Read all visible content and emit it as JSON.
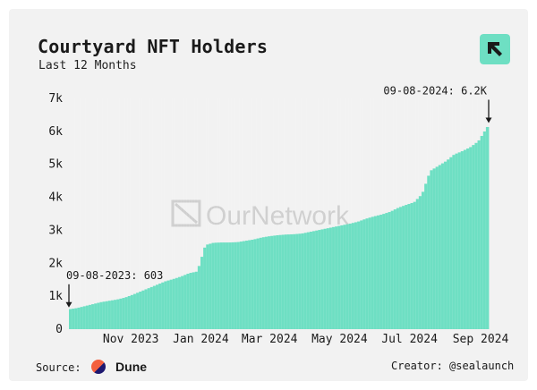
{
  "title": "Courtyard NFT Holders",
  "subtitle": "Last 12 Months",
  "watermark": "OurNetwork",
  "footer": {
    "source_label": "Source:",
    "source_name": "Dune",
    "creator_label": "Creator: ",
    "creator_name": "@sealaunch"
  },
  "colors": {
    "bar": "#6edfc3",
    "logo_bg": "#6edfc3",
    "logo_fg": "#1a1a1a"
  },
  "chart_data": {
    "type": "bar",
    "title": "Courtyard NFT Holders",
    "subtitle": "Last 12 Months",
    "ylim": [
      0,
      7000
    ],
    "yticks": [
      0,
      1000,
      2000,
      3000,
      4000,
      5000,
      6000,
      7000
    ],
    "ytick_labels": [
      "0",
      "1k",
      "2k",
      "3k",
      "4k",
      "5k",
      "6k",
      "7k"
    ],
    "x_start": "2023-09-08",
    "x_end": "2024-09-08",
    "xtick_labels": [
      "Nov 2023",
      "Jan 2024",
      "Mar 2024",
      "May 2024",
      "Jul 2024",
      "Sep 2024"
    ],
    "xtick_dates": [
      "2023-11-01",
      "2024-01-01",
      "2024-03-01",
      "2024-05-01",
      "2024-07-01",
      "2024-09-01"
    ],
    "grid": false,
    "series": [
      {
        "points": [
          [
            "2023-09-08",
            603
          ],
          [
            "2023-09-15",
            640
          ],
          [
            "2023-09-22",
            700
          ],
          [
            "2023-09-29",
            760
          ],
          [
            "2023-10-06",
            820
          ],
          [
            "2023-10-13",
            860
          ],
          [
            "2023-10-20",
            900
          ],
          [
            "2023-10-27",
            960
          ],
          [
            "2023-11-03",
            1050
          ],
          [
            "2023-11-10",
            1150
          ],
          [
            "2023-11-17",
            1250
          ],
          [
            "2023-11-24",
            1350
          ],
          [
            "2023-12-01",
            1450
          ],
          [
            "2023-12-08",
            1520
          ],
          [
            "2023-12-15",
            1600
          ],
          [
            "2023-12-22",
            1700
          ],
          [
            "2023-12-29",
            1750
          ],
          [
            "2024-01-05",
            2550
          ],
          [
            "2024-01-12",
            2620
          ],
          [
            "2024-01-19",
            2630
          ],
          [
            "2024-01-26",
            2630
          ],
          [
            "2024-02-02",
            2640
          ],
          [
            "2024-02-09",
            2680
          ],
          [
            "2024-02-16",
            2720
          ],
          [
            "2024-02-23",
            2780
          ],
          [
            "2024-03-01",
            2820
          ],
          [
            "2024-03-08",
            2850
          ],
          [
            "2024-03-15",
            2870
          ],
          [
            "2024-03-22",
            2880
          ],
          [
            "2024-03-29",
            2900
          ],
          [
            "2024-04-05",
            2950
          ],
          [
            "2024-04-12",
            3000
          ],
          [
            "2024-04-19",
            3050
          ],
          [
            "2024-04-26",
            3100
          ],
          [
            "2024-05-03",
            3150
          ],
          [
            "2024-05-10",
            3200
          ],
          [
            "2024-05-17",
            3260
          ],
          [
            "2024-05-24",
            3350
          ],
          [
            "2024-05-31",
            3420
          ],
          [
            "2024-06-07",
            3480
          ],
          [
            "2024-06-14",
            3560
          ],
          [
            "2024-06-21",
            3680
          ],
          [
            "2024-06-28",
            3770
          ],
          [
            "2024-07-05",
            3850
          ],
          [
            "2024-07-12",
            4100
          ],
          [
            "2024-07-19",
            4800
          ],
          [
            "2024-07-26",
            4950
          ],
          [
            "2024-08-02",
            5100
          ],
          [
            "2024-08-09",
            5300
          ],
          [
            "2024-08-16",
            5400
          ],
          [
            "2024-08-23",
            5520
          ],
          [
            "2024-08-30",
            5700
          ],
          [
            "2024-09-08",
            6200
          ]
        ]
      }
    ],
    "annotations": [
      {
        "text": "09-08-2023: 603",
        "date": "2023-09-08",
        "value": 603
      },
      {
        "text": "09-08-2024: 6.2K",
        "date": "2024-09-08",
        "value": 6200
      }
    ]
  }
}
